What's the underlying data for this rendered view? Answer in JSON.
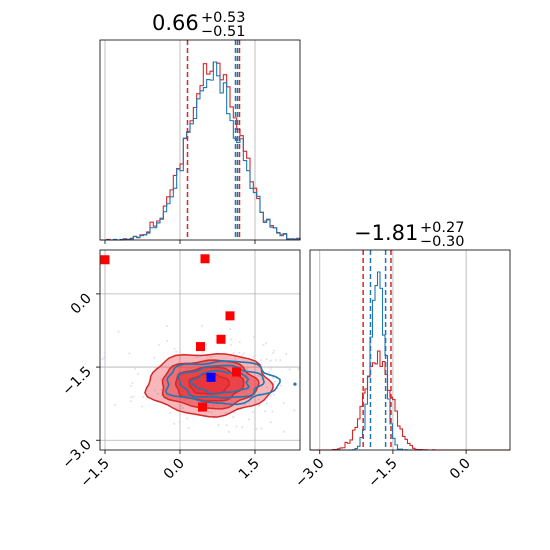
{
  "colors": {
    "blue": "#1f77b4",
    "red": "#d62728",
    "fill_red": "#e8353b",
    "marker_red": "#ff0000",
    "marker_blue": "#0000ff",
    "grid": "#b0b0b0"
  },
  "chart_data": {
    "type": "corner",
    "grid": true,
    "parameters": [
      {
        "title_value": "0.66",
        "err_plus": "+0.53",
        "err_minus": "−0.51",
        "median": 0.66,
        "q_low": 0.15,
        "q_high": 1.19
      },
      {
        "title_value": "−1.81",
        "err_plus": "+0.27",
        "err_minus": "−0.30",
        "median": -1.81,
        "q_low": -2.11,
        "q_high": -1.54
      }
    ],
    "panels": [
      {
        "id": "hist-param1",
        "type": "histogram",
        "xlim": [
          -1.6,
          2.4
        ],
        "xticks": [
          -1.5,
          0.0,
          1.5
        ],
        "dashed_lines": {
          "blue": [
            1.11,
            1.15
          ],
          "red": [
            0.15,
            1.19
          ]
        }
      },
      {
        "id": "scatter-param1-param2",
        "type": "contour",
        "xlim": [
          -1.6,
          2.4
        ],
        "ylim": [
          -3.2,
          0.9
        ],
        "xticks": [
          -1.5,
          0.0,
          1.5
        ],
        "yticks": [
          0.0,
          -1.5,
          -3.0
        ],
        "xtick_labels": [
          "−1.5",
          "0.0",
          "1.5"
        ],
        "ytick_labels": [
          "0.0",
          "−1.5",
          "−3.0"
        ],
        "red_markers": [
          {
            "x": -1.5,
            "y": 0.7
          },
          {
            "x": 0.5,
            "y": 0.72
          },
          {
            "x": 1.0,
            "y": -0.45
          },
          {
            "x": 0.82,
            "y": -0.93
          },
          {
            "x": 0.41,
            "y": -1.08
          },
          {
            "x": 1.13,
            "y": -1.6
          },
          {
            "x": 0.45,
            "y": -2.32
          }
        ],
        "blue_markers": [
          {
            "x": 0.62,
            "y": -1.71
          }
        ]
      },
      {
        "id": "hist-param2",
        "type": "histogram",
        "xlim": [
          -3.2,
          0.9
        ],
        "xticks": [
          -3.0,
          -1.5,
          0.0
        ],
        "xtick_labels": [
          "−3.0",
          "−1.5",
          "0.0"
        ],
        "dashed_lines": {
          "blue": [
            -1.96,
            -1.65
          ],
          "red": [
            -2.11,
            -1.54
          ]
        }
      }
    ]
  }
}
